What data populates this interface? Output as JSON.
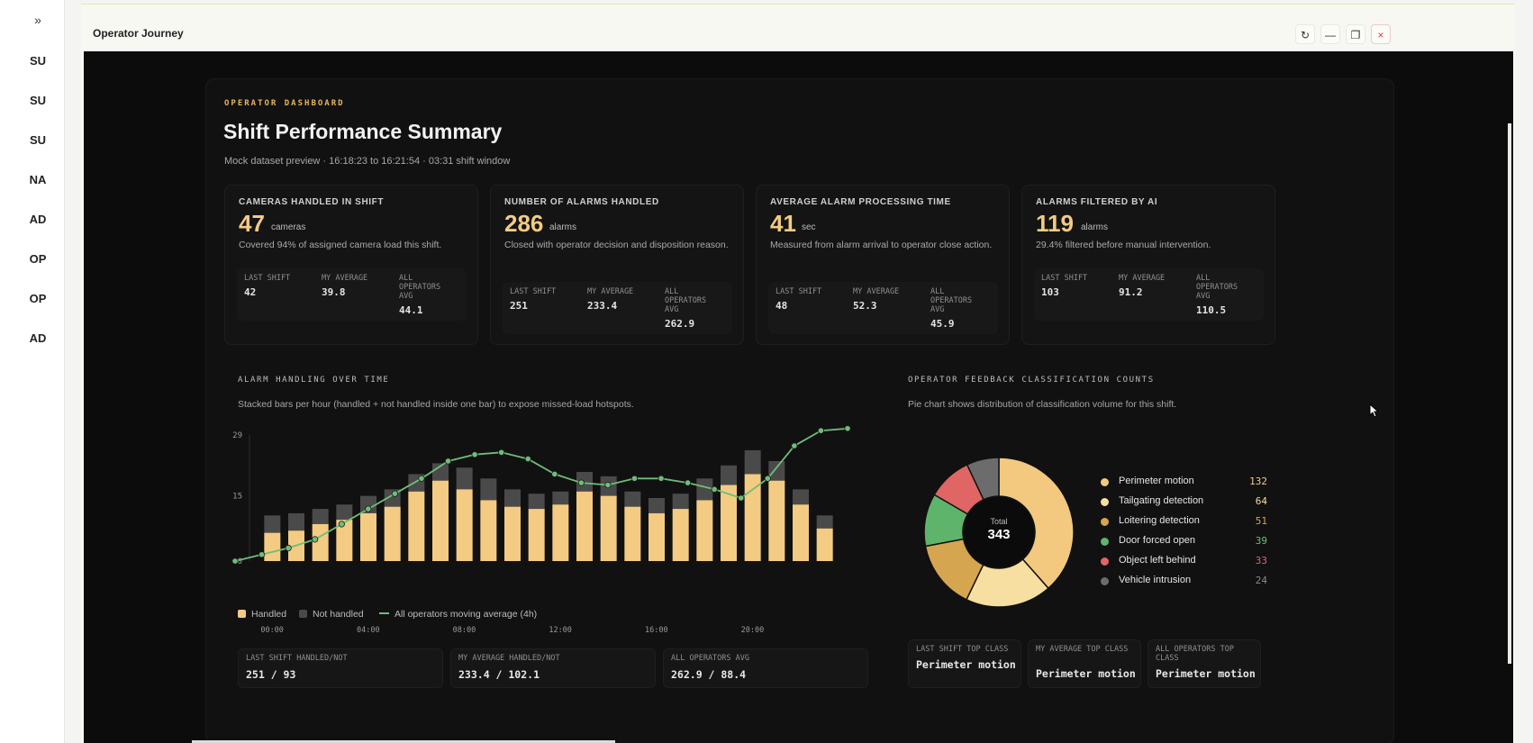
{
  "rail": {
    "toggle": "»",
    "items": [
      "SU",
      "SU",
      "SU",
      "NA",
      "AD",
      "OP",
      "OP",
      "AD"
    ]
  },
  "window": {
    "title": "Operator Journey",
    "buttons": {
      "refresh": "↻",
      "minimize": "—",
      "maximize": "❐",
      "close": "×"
    }
  },
  "dashboard": {
    "eyebrow": "OPERATOR DASHBOARD",
    "title": "Shift Performance Summary",
    "subtitle": "Mock dataset preview · 16:18:23 to 16:21:54 · 03:31 shift window"
  },
  "kpis": [
    {
      "label": "CAMERAS HANDLED IN SHIFT",
      "value": "47",
      "unit": "cameras",
      "desc": "Covered 94% of assigned camera load this shift.",
      "cmp": [
        {
          "label": "LAST SHIFT",
          "value": "42"
        },
        {
          "label": "MY AVERAGE",
          "value": "39.8"
        },
        {
          "label": "ALL OPERATORS AVG",
          "value": "44.1"
        }
      ]
    },
    {
      "label": "NUMBER OF ALARMS HANDLED",
      "value": "286",
      "unit": "alarms",
      "desc": "Closed with operator decision and disposition reason.",
      "cmp": [
        {
          "label": "LAST SHIFT",
          "value": "251"
        },
        {
          "label": "MY AVERAGE",
          "value": "233.4"
        },
        {
          "label": "ALL OPERATORS AVG",
          "value": "262.9"
        }
      ]
    },
    {
      "label": "AVERAGE ALARM PROCESSING TIME",
      "value": "41",
      "unit": "sec",
      "desc": "Measured from alarm arrival to operator close action.",
      "cmp": [
        {
          "label": "LAST SHIFT",
          "value": "48"
        },
        {
          "label": "MY AVERAGE",
          "value": "52.3"
        },
        {
          "label": "ALL OPERATORS AVG",
          "value": "45.9"
        }
      ]
    },
    {
      "label": "ALARMS FILTERED BY AI",
      "value": "119",
      "unit": "alarms",
      "desc": "29.4% filtered before manual intervention.",
      "cmp": [
        {
          "label": "LAST SHIFT",
          "value": "103"
        },
        {
          "label": "MY AVERAGE",
          "value": "91.2"
        },
        {
          "label": "ALL OPERATORS AVG",
          "value": "110.5"
        }
      ]
    }
  ],
  "alarm_section": {
    "title": "ALARM HANDLING OVER TIME",
    "desc": "Stacked bars per hour (handled + not handled inside one bar) to expose missed-load hotspots.",
    "legend": {
      "handled": "Handled",
      "not_handled": "Not handled",
      "avg": "All operators moving average (4h)"
    },
    "bottom": [
      {
        "label": "LAST SHIFT HANDLED/NOT",
        "value": "251 / 93"
      },
      {
        "label": "MY AVERAGE HANDLED/NOT",
        "value": "233.4 / 102.1"
      },
      {
        "label": "ALL OPERATORS AVG",
        "value": "262.9 / 88.4"
      }
    ]
  },
  "feedback_section": {
    "title": "OPERATOR FEEDBACK CLASSIFICATION COUNTS",
    "desc": "Pie chart shows distribution of classification volume for this shift.",
    "total_label": "Total",
    "total_value": "343",
    "bottom": [
      {
        "label": "LAST SHIFT TOP CLASS",
        "value": "Perimeter motion"
      },
      {
        "label": "MY AVERAGE TOP CLASS",
        "value": "Perimeter motion"
      },
      {
        "label": "ALL OPERATORS TOP CLASS",
        "value": "Perimeter motion"
      }
    ]
  },
  "colors": {
    "handled": "#f4cb82",
    "not_handled": "#4a4a4a",
    "avg_line": "#6fbd7a",
    "accent": "#e7b65a"
  },
  "chart_data": [
    {
      "type": "bar",
      "stacked": true,
      "ylim": [
        0,
        29
      ],
      "yticks": [
        "29",
        "15",
        "0"
      ],
      "xtick_labels": [
        "00:00",
        "04:00",
        "08:00",
        "12:00",
        "16:00",
        "20:00"
      ],
      "x": [
        "00:00",
        "01:00",
        "02:00",
        "03:00",
        "04:00",
        "05:00",
        "06:00",
        "07:00",
        "08:00",
        "09:00",
        "10:00",
        "11:00",
        "12:00",
        "13:00",
        "14:00",
        "15:00",
        "16:00",
        "17:00",
        "18:00",
        "19:00",
        "20:00",
        "21:00",
        "22:00",
        "23:00"
      ],
      "series": [
        {
          "name": "Handled",
          "values": [
            6.5,
            7,
            8.5,
            9.5,
            11,
            12.5,
            16,
            18.5,
            16.5,
            14,
            12.5,
            12,
            13,
            16,
            15,
            12.5,
            11,
            12,
            14,
            17.5,
            20,
            18.5,
            13,
            7.5
          ]
        },
        {
          "name": "Not handled",
          "values": [
            4,
            4,
            3.5,
            3.5,
            4,
            4,
            4,
            4,
            5,
            5,
            4,
            3.5,
            3,
            4.5,
            4.5,
            3.5,
            3.5,
            3.5,
            5,
            4.5,
            5.5,
            4.5,
            3.5,
            3
          ]
        },
        {
          "name": "All operators moving average (4h)",
          "type": "line",
          "values": [
            0,
            1.5,
            3,
            5,
            8.5,
            12,
            15.5,
            19,
            23,
            24.5,
            25,
            23.5,
            20,
            18,
            17.5,
            19,
            19,
            18,
            16.5,
            14.5,
            19,
            26.5,
            30,
            30.5
          ]
        }
      ]
    },
    {
      "type": "pie",
      "categories": [
        "Perimeter motion",
        "Tailgating detection",
        "Loitering detection",
        "Door forced open",
        "Object left behind",
        "Vehicle intrusion"
      ],
      "values": [
        132,
        64,
        51,
        39,
        33,
        24
      ],
      "colors": [
        "#f2c97e",
        "#f6dfa0",
        "#d6a54f",
        "#5fb46b",
        "#e06565",
        "#6c6c6c"
      ],
      "value_colors": [
        "#f4cb82",
        "#f6dfa0",
        "#d6a54f",
        "#6fbd7a",
        "#e06565",
        "#8a8a8a"
      ]
    }
  ]
}
